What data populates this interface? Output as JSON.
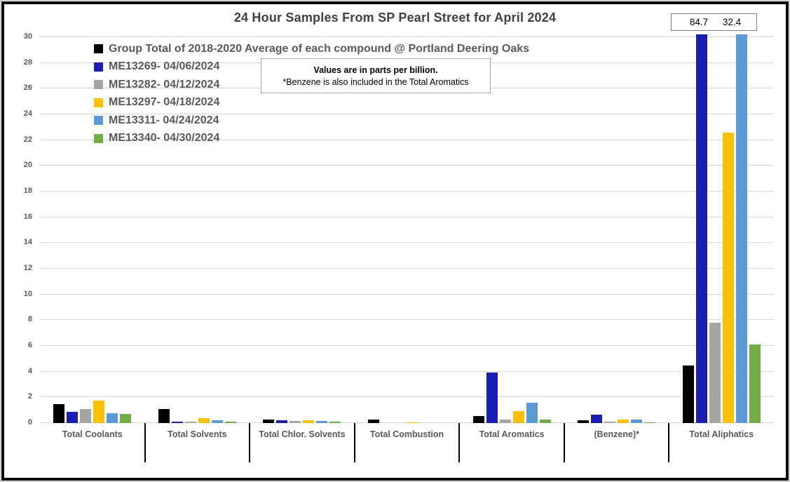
{
  "title": "24 Hour Samples From SP Pearl Street for April 2024",
  "note": {
    "line1": "Values are in parts per billion.",
    "line2": "*Benzene is also included in the Total Aromatics"
  },
  "callout": {
    "values": [
      "84.7",
      "32.4"
    ]
  },
  "chart_data": {
    "type": "bar",
    "title": "24 Hour Samples From SP Pearl Street for April 2024",
    "value_unit": "parts per billion",
    "categories": [
      "Total Coolants",
      "Total Solvents",
      "Total Chlor. Solvents",
      "Total Combustion",
      "Total Aromatics",
      "(Benzene)*",
      "Total Aliphatics"
    ],
    "series": [
      {
        "name": "Group Total of 2018-2020 Average of each compound @ Portland Deering Oaks",
        "color": "#000000",
        "values": [
          1.5,
          1.1,
          0.3,
          0.25,
          0.55,
          0.2,
          4.5
        ]
      },
      {
        "name": "ME13269- 04/06/2024",
        "color": "#1a1eb2",
        "values": [
          0.9,
          0.1,
          0.2,
          0,
          3.95,
          0.65,
          84.7
        ]
      },
      {
        "name": "ME13282- 04/12/2024",
        "color": "#a5a5a5",
        "values": [
          1.1,
          0.1,
          0.15,
          0,
          0.25,
          0.1,
          7.8
        ]
      },
      {
        "name": "ME13297- 04/18/2024",
        "color": "#ffc000",
        "values": [
          1.75,
          0.4,
          0.2,
          0.05,
          0.95,
          0.25,
          22.6
        ]
      },
      {
        "name": "ME13311- 04/24/2024",
        "color": "#5b9bd5",
        "values": [
          0.75,
          0.2,
          0.15,
          0,
          1.6,
          0.3,
          32.4
        ]
      },
      {
        "name": "ME13340- 04/30/2024",
        "color": "#70ad47",
        "values": [
          0.7,
          0.1,
          0.1,
          0,
          0.3,
          0.05,
          6.1
        ]
      }
    ],
    "ylim": [
      0,
      30
    ],
    "ytick_step": 2,
    "grid": true,
    "legend_position": "top-left",
    "clipped_bar_labels": [
      {
        "category": "Total Aliphatics",
        "series": "ME13269- 04/06/2024",
        "label": "84.7"
      },
      {
        "category": "Total Aliphatics",
        "series": "ME13311- 04/24/2024",
        "label": "32.4"
      }
    ],
    "colors": {
      "gridline": "#d9d9d9",
      "axis_text": "#595959",
      "title_text": "#404040",
      "divider": "#000000"
    }
  }
}
